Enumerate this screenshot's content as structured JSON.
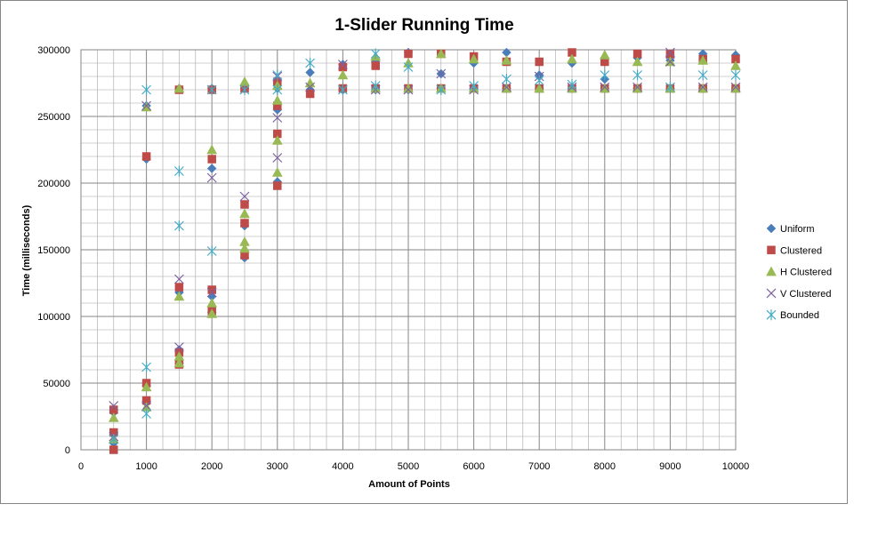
{
  "chart_data": {
    "type": "scatter",
    "title": "1-Slider Running Time",
    "xlabel": "Amount of Points",
    "ylabel": "Time (milliseconds)",
    "xlim": [
      0,
      10000
    ],
    "ylim": [
      0,
      300000
    ],
    "x_ticks": [
      "0",
      "1000",
      "2000",
      "3000",
      "4000",
      "5000",
      "6000",
      "7000",
      "8000",
      "9000",
      "10000"
    ],
    "y_ticks": [
      "0",
      "50000",
      "100000",
      "150000",
      "200000",
      "250000",
      "300000"
    ],
    "grid": true,
    "legend_position": "right",
    "series": [
      {
        "name": "Uniform",
        "color": "#4a7ebb",
        "marker": "diamond",
        "points": [
          [
            500,
            5000
          ],
          [
            500,
            12000
          ],
          [
            500,
            28000
          ],
          [
            1000,
            35000
          ],
          [
            1000,
            48000
          ],
          [
            1000,
            218000
          ],
          [
            1000,
            258000
          ],
          [
            1500,
            65000
          ],
          [
            1500,
            75000
          ],
          [
            1500,
            118000
          ],
          [
            1500,
            271000
          ],
          [
            2000,
            103000
          ],
          [
            2000,
            115000
          ],
          [
            2000,
            211000
          ],
          [
            2000,
            271000
          ],
          [
            2500,
            144000
          ],
          [
            2500,
            168000
          ],
          [
            2500,
            271000
          ],
          [
            3000,
            201000
          ],
          [
            3000,
            255000
          ],
          [
            3000,
            271000
          ],
          [
            3500,
            270000
          ],
          [
            3500,
            283000
          ],
          [
            4000,
            270000
          ],
          [
            4000,
            289000
          ],
          [
            4500,
            270000
          ],
          [
            4500,
            291000
          ],
          [
            5000,
            270000
          ],
          [
            5000,
            298000
          ],
          [
            5500,
            271000
          ],
          [
            5500,
            282000
          ],
          [
            6000,
            271000
          ],
          [
            6000,
            290000
          ],
          [
            6500,
            271000
          ],
          [
            6500,
            298000
          ],
          [
            7000,
            271000
          ],
          [
            7000,
            281000
          ],
          [
            7500,
            271000
          ],
          [
            7500,
            290000
          ],
          [
            8000,
            271000
          ],
          [
            8000,
            278000
          ],
          [
            8500,
            271000
          ],
          [
            8500,
            294000
          ],
          [
            9000,
            271000
          ],
          [
            9000,
            292000
          ],
          [
            9500,
            271000
          ],
          [
            9500,
            297000
          ],
          [
            10000,
            271000
          ],
          [
            10000,
            296000
          ]
        ]
      },
      {
        "name": "Clustered",
        "color": "#be4b48",
        "marker": "square",
        "points": [
          [
            500,
            0
          ],
          [
            500,
            13000
          ],
          [
            500,
            30000
          ],
          [
            1000,
            37000
          ],
          [
            1000,
            50000
          ],
          [
            1000,
            220000
          ],
          [
            1500,
            64000
          ],
          [
            1500,
            73000
          ],
          [
            1500,
            122000
          ],
          [
            1500,
            270000
          ],
          [
            2000,
            104000
          ],
          [
            2000,
            120000
          ],
          [
            2000,
            218000
          ],
          [
            2000,
            270000
          ],
          [
            2500,
            146000
          ],
          [
            2500,
            170000
          ],
          [
            2500,
            184000
          ],
          [
            2500,
            271000
          ],
          [
            3000,
            198000
          ],
          [
            3000,
            237000
          ],
          [
            3000,
            258000
          ],
          [
            3000,
            276000
          ],
          [
            3500,
            267000
          ],
          [
            4000,
            271000
          ],
          [
            4000,
            287000
          ],
          [
            4500,
            271000
          ],
          [
            4500,
            288000
          ],
          [
            5000,
            271000
          ],
          [
            5000,
            297000
          ],
          [
            5500,
            271000
          ],
          [
            5500,
            297000
          ],
          [
            6000,
            271000
          ],
          [
            6000,
            295000
          ],
          [
            6500,
            271000
          ],
          [
            6500,
            291000
          ],
          [
            7000,
            271000
          ],
          [
            7000,
            291000
          ],
          [
            7500,
            271000
          ],
          [
            7500,
            298000
          ],
          [
            8000,
            271000
          ],
          [
            8000,
            291000
          ],
          [
            8500,
            271000
          ],
          [
            8500,
            297000
          ],
          [
            9000,
            271000
          ],
          [
            9000,
            297000
          ],
          [
            9500,
            271000
          ],
          [
            9500,
            293000
          ],
          [
            10000,
            271000
          ],
          [
            10000,
            293000
          ]
        ]
      },
      {
        "name": "H Clustered",
        "color": "#98b954",
        "marker": "triangle",
        "points": [
          [
            500,
            8000
          ],
          [
            500,
            24000
          ],
          [
            1000,
            32000
          ],
          [
            1000,
            47000
          ],
          [
            1000,
            257000
          ],
          [
            1500,
            65000
          ],
          [
            1500,
            70000
          ],
          [
            1500,
            115000
          ],
          [
            1500,
            271000
          ],
          [
            2000,
            102000
          ],
          [
            2000,
            110000
          ],
          [
            2000,
            225000
          ],
          [
            2500,
            151000
          ],
          [
            2500,
            156000
          ],
          [
            2500,
            177000
          ],
          [
            2500,
            276000
          ],
          [
            3000,
            208000
          ],
          [
            3000,
            232000
          ],
          [
            3000,
            262000
          ],
          [
            3000,
            273000
          ],
          [
            3500,
            275000
          ],
          [
            4000,
            281000
          ],
          [
            4500,
            271000
          ],
          [
            4500,
            295000
          ],
          [
            5000,
            271000
          ],
          [
            5000,
            290000
          ],
          [
            5500,
            271000
          ],
          [
            5500,
            297000
          ],
          [
            6000,
            271000
          ],
          [
            6000,
            293000
          ],
          [
            6500,
            271000
          ],
          [
            6500,
            292000
          ],
          [
            7000,
            271000
          ],
          [
            7500,
            271000
          ],
          [
            7500,
            293000
          ],
          [
            8000,
            271000
          ],
          [
            8000,
            296000
          ],
          [
            8500,
            271000
          ],
          [
            8500,
            291000
          ],
          [
            9000,
            271000
          ],
          [
            9000,
            291000
          ],
          [
            9500,
            271000
          ],
          [
            9500,
            292000
          ],
          [
            10000,
            271000
          ],
          [
            10000,
            288000
          ]
        ]
      },
      {
        "name": "V Clustered",
        "color": "#7d60a0",
        "marker": "x",
        "points": [
          [
            500,
            10000
          ],
          [
            500,
            33000
          ],
          [
            1000,
            33000
          ],
          [
            1000,
            258000
          ],
          [
            1500,
            77000
          ],
          [
            1500,
            128000
          ],
          [
            2000,
            118000
          ],
          [
            2000,
            204000
          ],
          [
            2500,
            190000
          ],
          [
            3000,
            219000
          ],
          [
            3000,
            249000
          ],
          [
            3000,
            280000
          ],
          [
            3500,
            272000
          ],
          [
            4000,
            289000
          ],
          [
            4500,
            270000
          ],
          [
            5000,
            270000
          ],
          [
            5500,
            282000
          ],
          [
            6000,
            270000
          ],
          [
            6500,
            272000
          ],
          [
            7000,
            280000
          ],
          [
            7500,
            272000
          ],
          [
            8000,
            272000
          ],
          [
            8500,
            272000
          ],
          [
            9000,
            291000
          ],
          [
            9000,
            298000
          ],
          [
            9500,
            272000
          ],
          [
            10000,
            272000
          ]
        ]
      },
      {
        "name": "Bounded",
        "color": "#46aac5",
        "marker": "star",
        "points": [
          [
            500,
            8000
          ],
          [
            1000,
            27000
          ],
          [
            1000,
            62000
          ],
          [
            1000,
            270000
          ],
          [
            1500,
            168000
          ],
          [
            1500,
            209000
          ],
          [
            2000,
            149000
          ],
          [
            2000,
            270000
          ],
          [
            2500,
            270000
          ],
          [
            3000,
            270000
          ],
          [
            3000,
            281000
          ],
          [
            3500,
            290000
          ],
          [
            4000,
            270000
          ],
          [
            4500,
            273000
          ],
          [
            4500,
            297000
          ],
          [
            5000,
            287000
          ],
          [
            5500,
            270000
          ],
          [
            6000,
            273000
          ],
          [
            6500,
            278000
          ],
          [
            7000,
            277000
          ],
          [
            7500,
            274000
          ],
          [
            8000,
            281000
          ],
          [
            8500,
            281000
          ],
          [
            9000,
            272000
          ],
          [
            9500,
            281000
          ],
          [
            10000,
            281000
          ]
        ]
      }
    ]
  }
}
